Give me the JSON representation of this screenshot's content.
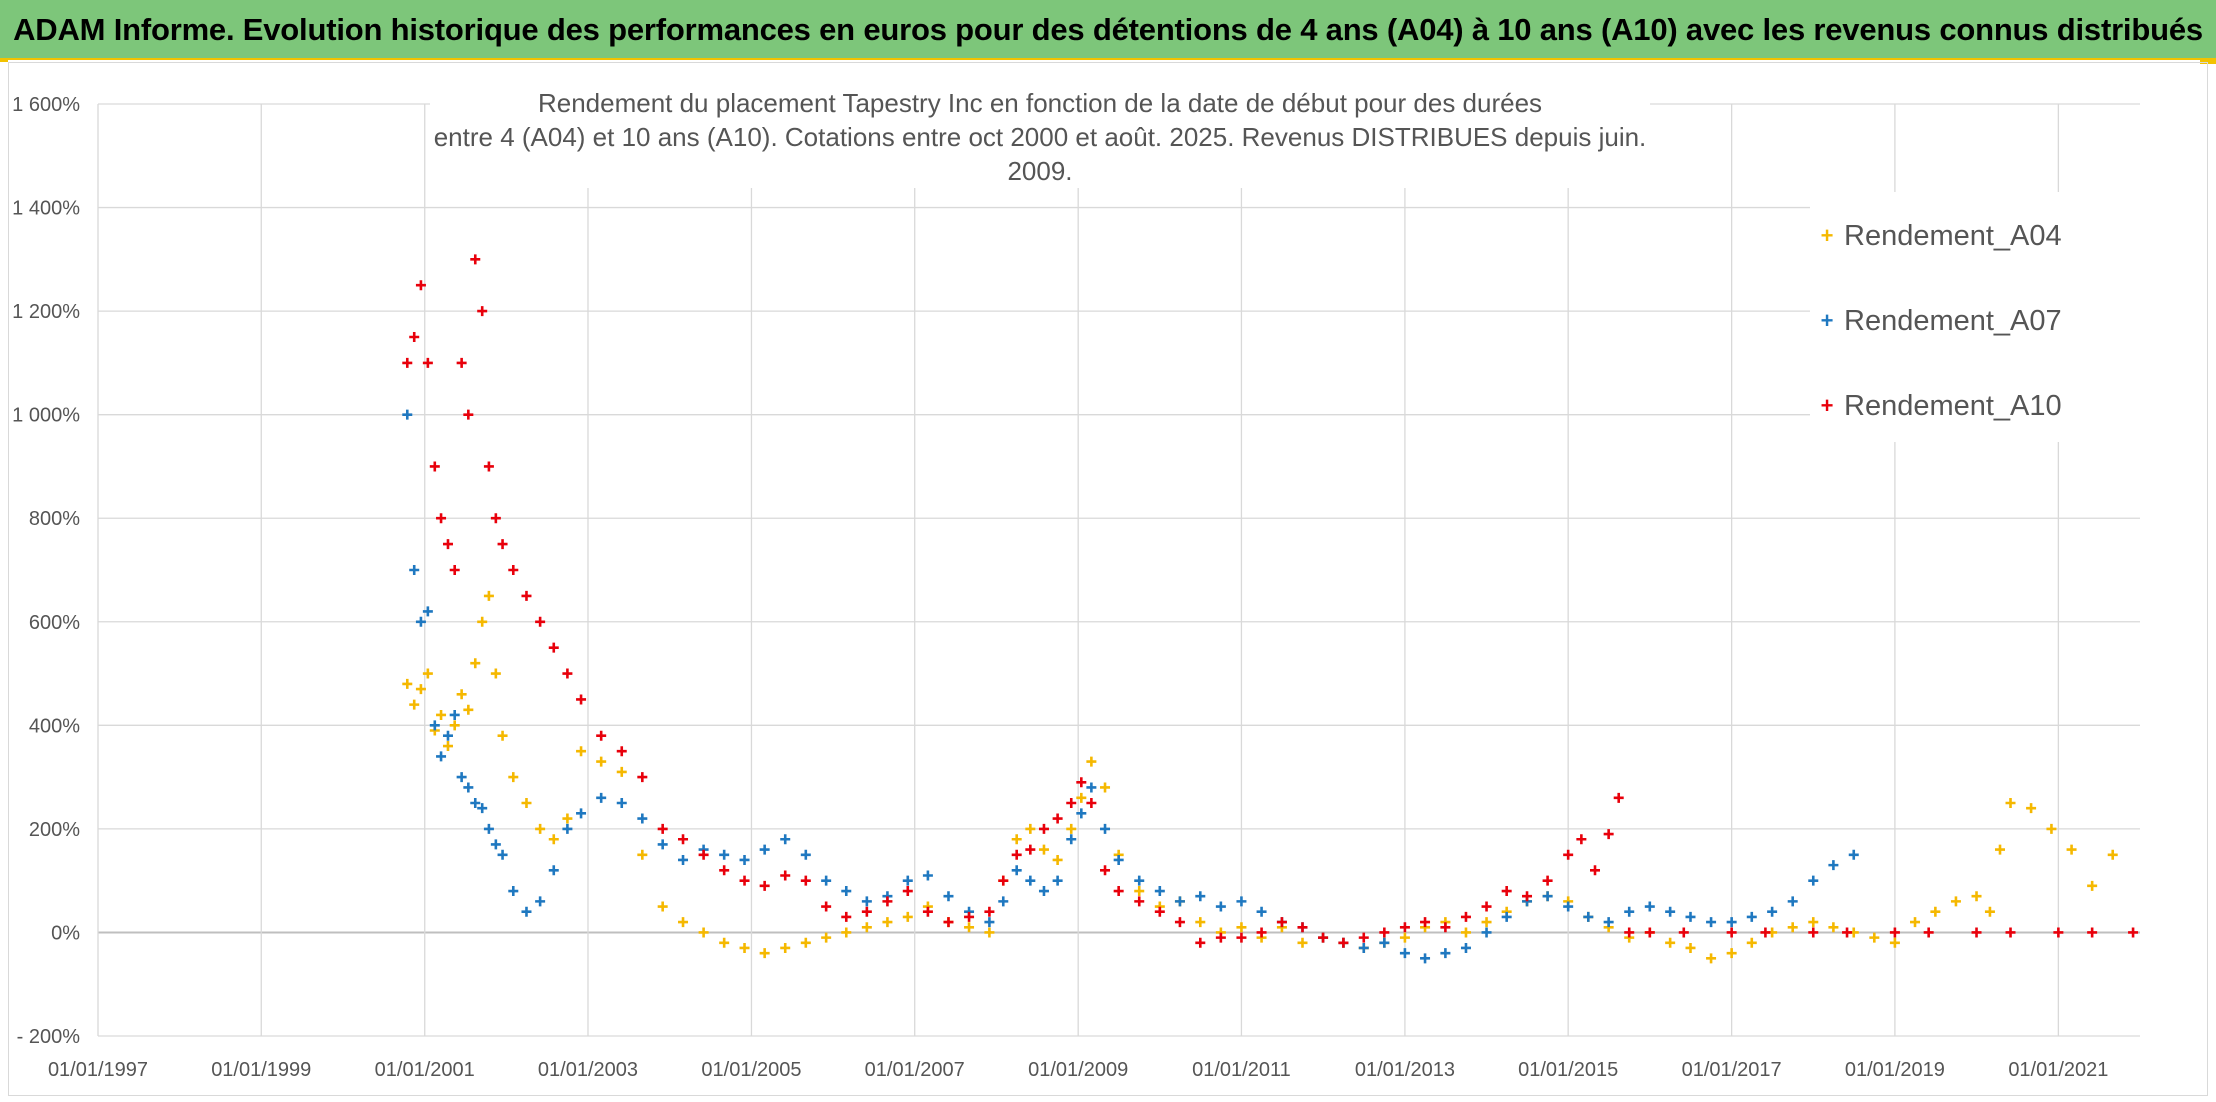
{
  "header": {
    "title": "ADAM Informe. Evolution historique des performances en euros pour des détentions de 4 ans (A04) à 10 ans (A10) avec les revenus connus distribués"
  },
  "colors": {
    "banner": "#7dc67a",
    "accent": "#f2c200",
    "A04": "#f5b800",
    "A07": "#1f78c0",
    "A10": "#e8000b",
    "grid": "#d9d9d9"
  },
  "chart_data": {
    "type": "scatter",
    "title_lines": [
      "Rendement du placement Tapestry Inc en fonction de la date de début pour des durées",
      "entre 4 (A04) et 10 ans (A10). Cotations entre oct 2000 et août. 2025. Revenus DISTRIBUES depuis juin. 2009."
    ],
    "xlabel": "",
    "ylabel": "",
    "x_tick_labels": [
      "01/01/1997",
      "01/01/1999",
      "01/01/2001",
      "01/01/2003",
      "01/01/2005",
      "01/01/2007",
      "01/01/2009",
      "01/01/2011",
      "01/01/2013",
      "01/01/2015",
      "01/01/2017",
      "01/01/2019",
      "01/01/2021"
    ],
    "xlim": [
      "1997-01-01",
      "2022-01-01"
    ],
    "y_tick_labels": [
      "- 200%",
      "0%",
      "200%",
      "400%",
      "600%",
      "800%",
      "1 000%",
      "1 200%",
      "1 400%",
      "1 600%"
    ],
    "y_ticks": [
      -200,
      0,
      200,
      400,
      600,
      800,
      1000,
      1200,
      1400,
      1600
    ],
    "ylim": [
      -200,
      1600
    ],
    "grid": true,
    "legend_position": "top-right",
    "marker": "+",
    "series": [
      {
        "name": "Rendement_A04",
        "color": "#f5b800",
        "x": [
          "2000-10-15",
          "2000-11-15",
          "2000-12-15",
          "2001-01-15",
          "2001-02-15",
          "2001-03-15",
          "2001-04-15",
          "2001-05-15",
          "2001-06-15",
          "2001-07-15",
          "2001-08-15",
          "2001-09-15",
          "2001-10-15",
          "2001-11-15",
          "2001-12-15",
          "2002-02-01",
          "2002-04-01",
          "2002-06-01",
          "2002-08-01",
          "2002-10-01",
          "2002-12-01",
          "2003-03-01",
          "2003-06-01",
          "2003-09-01",
          "2003-12-01",
          "2004-03-01",
          "2004-06-01",
          "2004-09-01",
          "2004-12-01",
          "2005-03-01",
          "2005-06-01",
          "2005-09-01",
          "2005-12-01",
          "2006-03-01",
          "2006-06-01",
          "2006-09-01",
          "2006-12-01",
          "2007-03-01",
          "2007-06-01",
          "2007-09-01",
          "2007-12-01",
          "2008-02-01",
          "2008-04-01",
          "2008-06-01",
          "2008-08-01",
          "2008-10-01",
          "2008-12-01",
          "2009-01-15",
          "2009-03-01",
          "2009-05-01",
          "2009-07-01",
          "2009-10-01",
          "2010-01-01",
          "2010-04-01",
          "2010-07-01",
          "2010-10-01",
          "2011-01-01",
          "2011-04-01",
          "2011-07-01",
          "2011-10-01",
          "2012-01-01",
          "2012-04-01",
          "2012-07-01",
          "2012-10-01",
          "2013-01-01",
          "2013-04-01",
          "2013-07-01",
          "2013-10-01",
          "2014-01-01",
          "2014-04-01",
          "2014-07-01",
          "2014-10-01",
          "2015-01-01",
          "2015-04-01",
          "2015-07-01",
          "2015-10-01",
          "2016-01-01",
          "2016-04-01",
          "2016-07-01",
          "2016-10-01",
          "2017-01-01",
          "2017-04-01",
          "2017-07-01",
          "2017-10-01",
          "2018-01-01",
          "2018-04-01",
          "2018-07-01",
          "2018-10-01",
          "2019-01-01",
          "2019-04-01",
          "2019-07-01",
          "2019-10-01",
          "2020-01-01",
          "2020-03-01",
          "2020-04-15",
          "2020-06-01",
          "2020-09-01",
          "2020-12-01",
          "2021-03-01",
          "2021-06-01",
          "2021-09-01"
        ],
        "y": [
          480,
          440,
          470,
          500,
          390,
          420,
          360,
          400,
          460,
          430,
          520,
          600,
          650,
          500,
          380,
          300,
          250,
          200,
          180,
          220,
          350,
          330,
          310,
          150,
          50,
          20,
          0,
          -20,
          -30,
          -40,
          -30,
          -20,
          -10,
          0,
          10,
          20,
          30,
          50,
          20,
          10,
          0,
          100,
          180,
          200,
          160,
          140,
          200,
          260,
          330,
          280,
          150,
          80,
          50,
          60,
          20,
          0,
          10,
          -10,
          10,
          -20,
          -10,
          -20,
          -30,
          -20,
          -10,
          10,
          20,
          0,
          20,
          40,
          60,
          70,
          60,
          30,
          10,
          -10,
          0,
          -20,
          -30,
          -50,
          -40,
          -20,
          0,
          10,
          20,
          10,
          0,
          -10,
          -20,
          20,
          40,
          60,
          70,
          40,
          160,
          250,
          240,
          200,
          160,
          90,
          150
        ]
      },
      {
        "name": "Rendement_A07",
        "color": "#1f78c0",
        "x": [
          "2000-10-15",
          "2000-11-15",
          "2000-12-15",
          "2001-01-15",
          "2001-02-15",
          "2001-03-15",
          "2001-04-15",
          "2001-05-15",
          "2001-06-15",
          "2001-07-15",
          "2001-08-15",
          "2001-09-15",
          "2001-10-15",
          "2001-11-15",
          "2001-12-15",
          "2002-02-01",
          "2002-04-01",
          "2002-06-01",
          "2002-08-01",
          "2002-10-01",
          "2002-12-01",
          "2003-03-01",
          "2003-06-01",
          "2003-09-01",
          "2003-12-01",
          "2004-03-01",
          "2004-06-01",
          "2004-09-01",
          "2004-12-01",
          "2005-03-01",
          "2005-06-01",
          "2005-09-01",
          "2005-12-01",
          "2006-03-01",
          "2006-06-01",
          "2006-09-01",
          "2006-12-01",
          "2007-03-01",
          "2007-06-01",
          "2007-09-01",
          "2007-12-01",
          "2008-02-01",
          "2008-04-01",
          "2008-06-01",
          "2008-08-01",
          "2008-10-01",
          "2008-12-01",
          "2009-01-15",
          "2009-03-01",
          "2009-05-01",
          "2009-07-01",
          "2009-10-01",
          "2010-01-01",
          "2010-04-01",
          "2010-07-01",
          "2010-10-01",
          "2011-01-01",
          "2011-04-01",
          "2011-07-01",
          "2011-10-01",
          "2012-01-01",
          "2012-04-01",
          "2012-07-01",
          "2012-10-01",
          "2013-01-01",
          "2013-04-01",
          "2013-07-01",
          "2013-10-01",
          "2014-01-01",
          "2014-04-01",
          "2014-07-01",
          "2014-10-01",
          "2015-01-01",
          "2015-04-01",
          "2015-07-01",
          "2015-10-01",
          "2016-01-01",
          "2016-04-01",
          "2016-07-01",
          "2016-10-01",
          "2017-01-01",
          "2017-04-01",
          "2017-07-01",
          "2017-10-01",
          "2018-01-01",
          "2018-04-01",
          "2018-07-01"
        ],
        "y": [
          1000,
          700,
          600,
          620,
          400,
          340,
          380,
          420,
          300,
          280,
          250,
          240,
          200,
          170,
          150,
          80,
          40,
          60,
          120,
          200,
          230,
          260,
          250,
          220,
          170,
          140,
          160,
          150,
          140,
          160,
          180,
          150,
          100,
          80,
          60,
          70,
          100,
          110,
          70,
          40,
          20,
          60,
          120,
          100,
          80,
          100,
          180,
          230,
          280,
          200,
          140,
          100,
          80,
          60,
          70,
          50,
          60,
          40,
          20,
          10,
          -10,
          -20,
          -30,
          -20,
          -40,
          -50,
          -40,
          -30,
          0,
          30,
          60,
          70,
          50,
          30,
          20,
          40,
          50,
          40,
          30,
          20,
          20,
          30,
          40,
          60,
          100,
          130,
          150
        ]
      },
      {
        "name": "Rendement_A10",
        "color": "#e8000b",
        "x": [
          "2000-10-15",
          "2000-11-15",
          "2000-12-15",
          "2001-01-15",
          "2001-02-15",
          "2001-03-15",
          "2001-04-15",
          "2001-05-15",
          "2001-06-15",
          "2001-07-15",
          "2001-08-15",
          "2001-09-15",
          "2001-10-15",
          "2001-11-15",
          "2001-12-15",
          "2002-02-01",
          "2002-04-01",
          "2002-06-01",
          "2002-08-01",
          "2002-10-01",
          "2002-12-01",
          "2003-03-01",
          "2003-06-01",
          "2003-09-01",
          "2003-12-01",
          "2004-03-01",
          "2004-06-01",
          "2004-09-01",
          "2004-12-01",
          "2005-03-01",
          "2005-06-01",
          "2005-09-01",
          "2005-12-01",
          "2006-03-01",
          "2006-06-01",
          "2006-09-01",
          "2006-12-01",
          "2007-03-01",
          "2007-06-01",
          "2007-09-01",
          "2007-12-01",
          "2008-02-01",
          "2008-04-01",
          "2008-06-01",
          "2008-08-01",
          "2008-10-01",
          "2008-12-01",
          "2009-01-15",
          "2009-03-01",
          "2009-05-01",
          "2009-07-01",
          "2009-10-01",
          "2010-01-01",
          "2010-04-01",
          "2010-07-01",
          "2010-10-01",
          "2011-01-01",
          "2011-04-01",
          "2011-07-01",
          "2011-10-01",
          "2012-01-01",
          "2012-04-01",
          "2012-07-01",
          "2012-10-01",
          "2013-01-01",
          "2013-04-01",
          "2013-07-01",
          "2013-10-01",
          "2014-01-01",
          "2014-04-01",
          "2014-07-01",
          "2014-10-01",
          "2015-01-01",
          "2015-03-01",
          "2015-05-01",
          "2015-07-01",
          "2015-08-15",
          "2015-10-01",
          "2016-01-01",
          "2016-06-01",
          "2017-01-01",
          "2017-06-01",
          "2018-01-01",
          "2018-06-01",
          "2019-01-01",
          "2019-06-01",
          "2020-01-01",
          "2020-06-01",
          "2021-01-01",
          "2021-06-01",
          "2021-12-01"
        ],
        "y": [
          1100,
          1150,
          1250,
          1100,
          900,
          800,
          750,
          700,
          1100,
          1000,
          1300,
          1200,
          900,
          800,
          750,
          700,
          650,
          600,
          550,
          500,
          450,
          380,
          350,
          300,
          200,
          180,
          150,
          120,
          100,
          90,
          110,
          100,
          50,
          30,
          40,
          60,
          80,
          40,
          20,
          30,
          40,
          100,
          150,
          160,
          200,
          220,
          250,
          290,
          250,
          120,
          80,
          60,
          40,
          20,
          -20,
          -10,
          -10,
          0,
          20,
          10,
          -10,
          -20,
          -10,
          0,
          10,
          20,
          10,
          30,
          50,
          80,
          70,
          100,
          150,
          180,
          120,
          190,
          260,
          0,
          0,
          0,
          0,
          0,
          0,
          0,
          0,
          0,
          0,
          0,
          0,
          0,
          0
        ]
      }
    ]
  }
}
